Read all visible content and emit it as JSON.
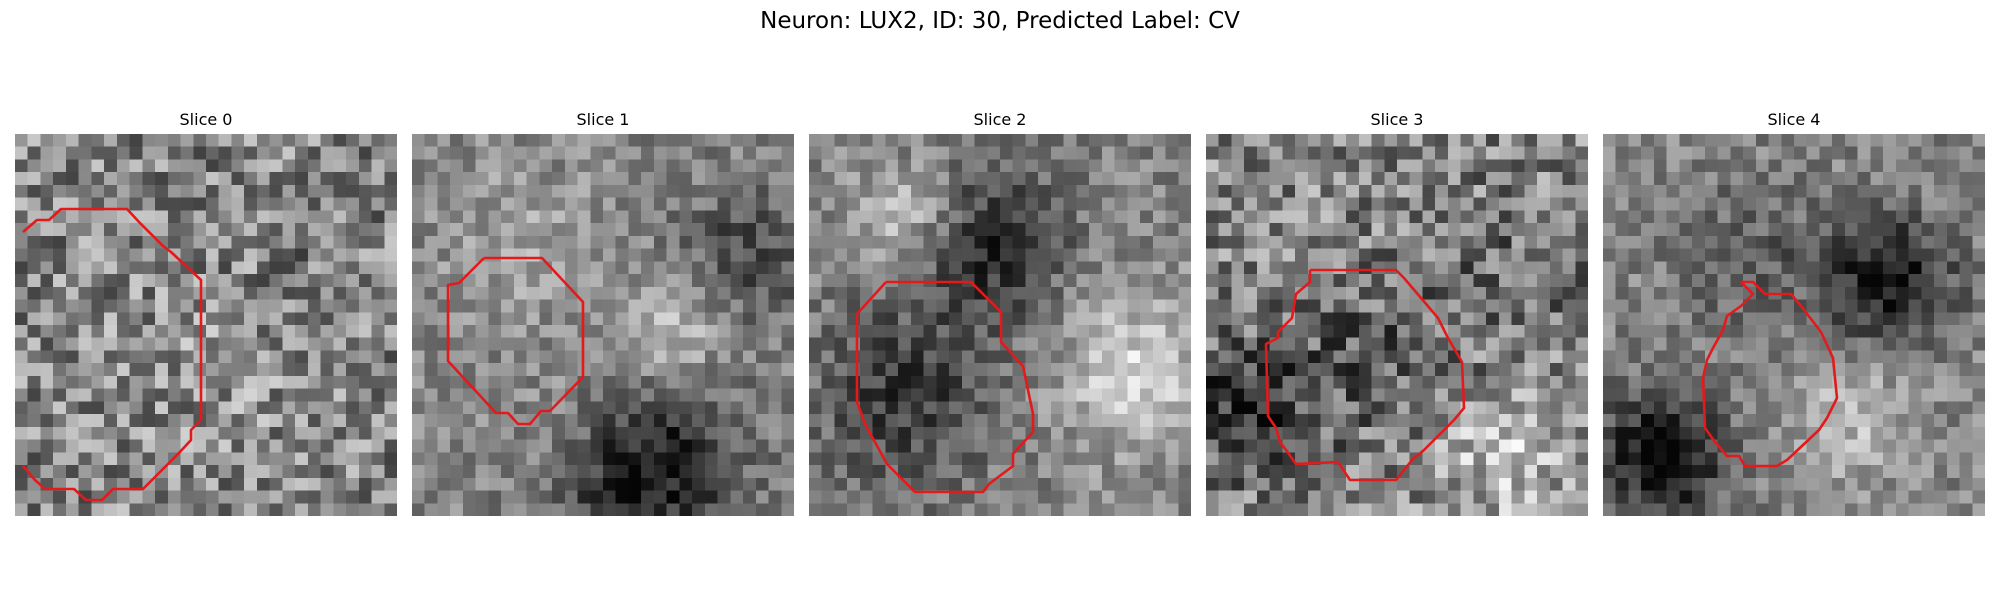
{
  "figure": {
    "title": "Neuron: LUX2, ID: 30, Predicted Label: CV",
    "contour_color": "#e31a1c",
    "colormap": "gray",
    "panels": [
      {
        "label": "Slice 0"
      },
      {
        "label": "Slice 1"
      },
      {
        "label": "Slice 2"
      },
      {
        "label": "Slice 3"
      },
      {
        "label": "Slice 4"
      }
    ]
  }
}
